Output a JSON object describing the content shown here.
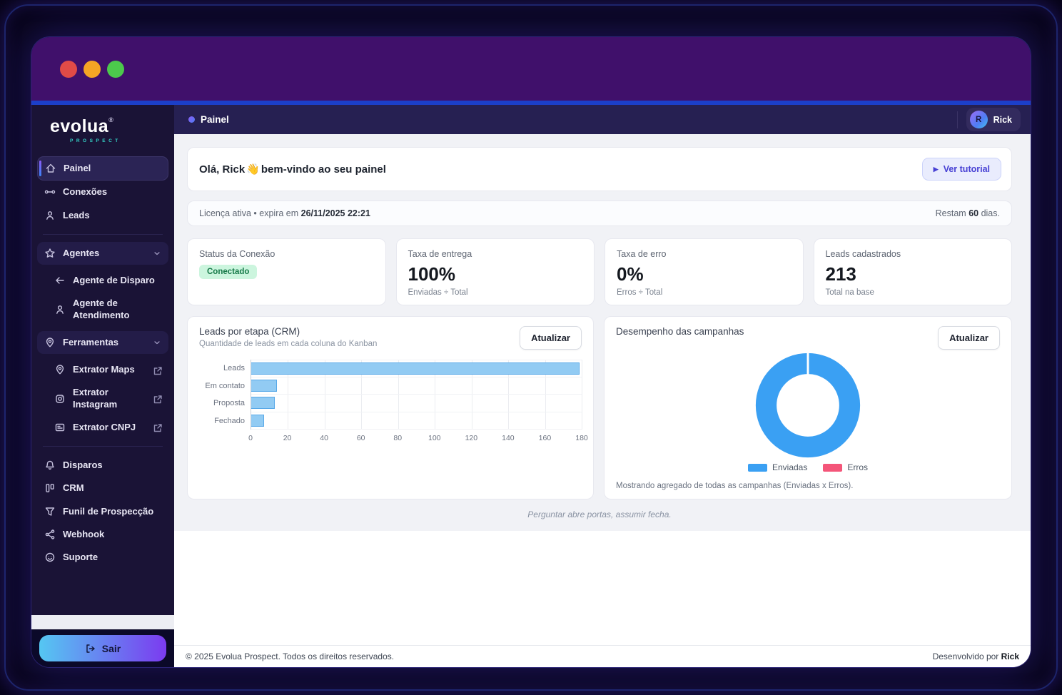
{
  "window": {
    "traffic_lights": [
      "#e04b47",
      "#f5a524",
      "#4cc94c"
    ],
    "blue_strip_color": "#1c3fc9",
    "titlebar_color": "#40106b"
  },
  "brand": {
    "name": "evolua",
    "registered": "®",
    "subtitle": "PROSPECT",
    "accent": "#35d0c5"
  },
  "sidebar": {
    "items": [
      {
        "type": "item",
        "slug": "painel",
        "icon": "home-icon",
        "label": "Painel",
        "active": true
      },
      {
        "type": "item",
        "slug": "conexoes",
        "icon": "link-icon",
        "label": "Conexões"
      },
      {
        "type": "item",
        "slug": "leads",
        "icon": "user-icon",
        "label": "Leads"
      },
      {
        "type": "divider"
      },
      {
        "type": "section",
        "slug": "agentes",
        "icon": "star-icon",
        "label": "Agentes",
        "chevron": true
      },
      {
        "type": "item",
        "slug": "agente-de-disparo",
        "icon": "arrow-left-icon",
        "label": "Agente de Disparo",
        "indent": true
      },
      {
        "type": "item",
        "slug": "agente-de-atendimento",
        "icon": "user-icon",
        "label": "Agente de Atendimento",
        "indent": true
      },
      {
        "type": "section",
        "slug": "ferramentas",
        "icon": "pin-icon",
        "label": "Ferramentas",
        "chevron": true
      },
      {
        "type": "item",
        "slug": "extrator-maps",
        "icon": "map-pin-icon",
        "label": "Extrator Maps",
        "indent": true,
        "external": true
      },
      {
        "type": "item",
        "slug": "extrator-instagram",
        "icon": "instagram-icon",
        "label": "Extrator Instagram",
        "indent": true,
        "external": true
      },
      {
        "type": "item",
        "slug": "extrator-cnpj",
        "icon": "card-icon",
        "label": "Extrator CNPJ",
        "indent": true,
        "external": true
      },
      {
        "type": "divider"
      },
      {
        "type": "item",
        "slug": "disparos",
        "icon": "bell-icon",
        "label": "Disparos"
      },
      {
        "type": "item",
        "slug": "crm",
        "icon": "kanban-icon",
        "label": "CRM"
      },
      {
        "type": "item",
        "slug": "funil-de-prospeccao",
        "icon": "funnel-icon",
        "label": "Funil de Prospecção"
      },
      {
        "type": "item",
        "slug": "webhook",
        "icon": "share-icon",
        "label": "Webhook"
      },
      {
        "type": "item",
        "slug": "suporte",
        "icon": "smiley-icon",
        "label": "Suporte"
      }
    ],
    "logout_label": "Sair",
    "logout_icon": "logout-icon",
    "logout_gradient": [
      "#55c7f2",
      "#7b3bf0"
    ]
  },
  "header": {
    "title": "Painel",
    "user_initial": "R",
    "user_name": "Rick"
  },
  "welcome": {
    "greeting_before": "Olá, Rick",
    "wave_emoji": "👋",
    "greeting_after": "bem-vindo ao seu painel",
    "tutorial_button": "Ver tutorial",
    "play_icon": "▶"
  },
  "license": {
    "prefix": "Licença ativa • expira em ",
    "date": "26/11/2025 22:21",
    "remaining_prefix": "Restam ",
    "remaining_value": "60",
    "remaining_suffix": " dias."
  },
  "stats": [
    {
      "label": "Status da Conexão",
      "badge": "Conectado",
      "badge_bg": "#ccf5de",
      "badge_color": "#177a49"
    },
    {
      "label": "Taxa de entrega",
      "value": "100%",
      "caption": "Enviadas ÷ Total"
    },
    {
      "label": "Taxa de erro",
      "value": "0%",
      "caption": "Erros ÷ Total"
    },
    {
      "label": "Leads cadastrados",
      "value": "213",
      "caption": "Total na base"
    }
  ],
  "chart_data": [
    {
      "type": "bar",
      "orientation": "horizontal",
      "title": "Leads por etapa (CRM)",
      "subtitle": "Quantidade de leads em cada coluna do Kanban",
      "refresh_button": "Atualizar",
      "categories": [
        "Leads",
        "Em contato",
        "Proposta",
        "Fechado"
      ],
      "values": [
        179,
        14,
        13,
        7
      ],
      "xlim": [
        0,
        180
      ],
      "xticks": [
        0,
        20,
        40,
        60,
        80,
        100,
        120,
        140,
        160,
        180
      ],
      "bar_fill": "#92cbf3",
      "bar_border": "#58a9e8",
      "grid": true
    },
    {
      "type": "donut",
      "title": "Desempenho das campanhas",
      "refresh_button": "Atualizar",
      "series": [
        {
          "name": "Enviadas",
          "value": 213,
          "color": "#3aa0f3"
        },
        {
          "name": "Erros",
          "value": 0,
          "color": "#f45579"
        }
      ],
      "legend_position": "bottom",
      "footnote": "Mostrando agregado de todas as campanhas (Enviadas x Erros)."
    }
  ],
  "quote": "Perguntar abre portas, assumir fecha.",
  "footer": {
    "copyright": "© 2025 Evolua Prospect. Todos os direitos reservados.",
    "developed_prefix": "Desenvolvido por ",
    "developed_name": "Rick"
  }
}
